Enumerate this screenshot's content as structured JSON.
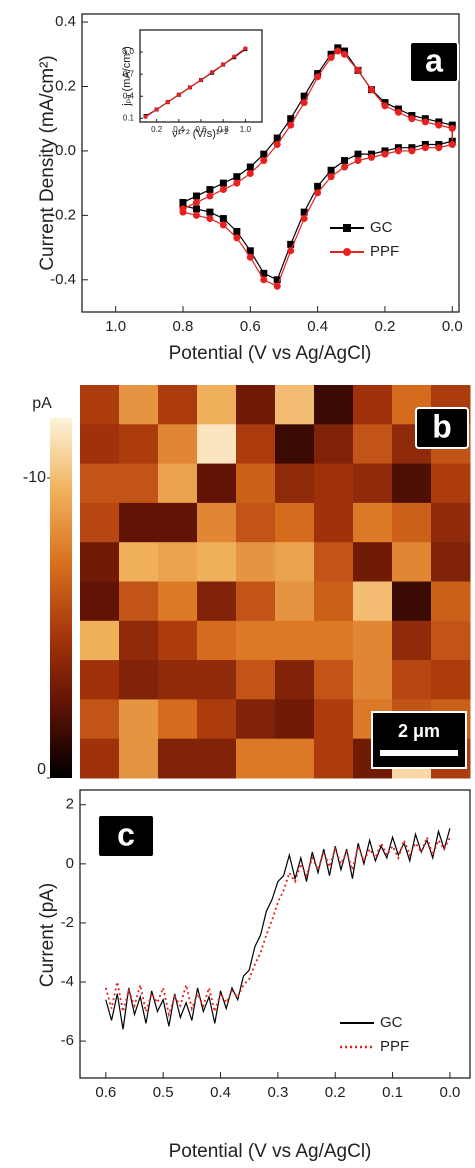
{
  "chart_data": [
    {
      "type": "line",
      "panel_label": "a",
      "xlabel": "Potential (V vs Ag/AgCl)",
      "ylabel": "Current Density (mA/cm²)",
      "xlim": [
        1.1,
        -0.02
      ],
      "xticks": [
        {
          "value": 1,
          "label": "1.0"
        },
        0.8,
        0.6,
        0.4,
        0.2,
        {
          "value": 0,
          "label": "0.0"
        }
      ],
      "ylim": [
        -0.5,
        0.425
      ],
      "yticks": [
        0.4,
        0.2,
        {
          "value": 0,
          "label": "0.0"
        },
        -0.2,
        -0.4
      ],
      "legend": "lower right",
      "series": [
        {
          "name": "GC",
          "color": "#000000",
          "marker": "square",
          "x": [
            0.8,
            0.76,
            0.72,
            0.68,
            0.64,
            0.6,
            0.56,
            0.52,
            0.48,
            0.44,
            0.4,
            0.36,
            0.34,
            0.32,
            0.28,
            0.24,
            0.2,
            0.16,
            0.12,
            0.08,
            0.04,
            0,
            0,
            0.04,
            0.08,
            0.12,
            0.16,
            0.2,
            0.24,
            0.28,
            0.32,
            0.36,
            0.4,
            0.44,
            0.48,
            0.52,
            0.56,
            0.6,
            0.64,
            0.68,
            0.72,
            0.76,
            0.8
          ],
          "values": [
            -0.16,
            -0.14,
            -0.12,
            -0.1,
            -0.08,
            -0.05,
            -0.01,
            0.04,
            0.1,
            0.17,
            0.24,
            0.3,
            0.32,
            0.31,
            0.25,
            0.19,
            0.15,
            0.13,
            0.11,
            0.1,
            0.09,
            0.08,
            0.03,
            0.02,
            0.02,
            0.01,
            0.01,
            0,
            -0.01,
            -0.01,
            -0.03,
            -0.06,
            -0.11,
            -0.19,
            -0.29,
            -0.4,
            -0.38,
            -0.31,
            -0.25,
            -0.21,
            -0.19,
            -0.18,
            -0.17
          ]
        },
        {
          "name": "PPF",
          "color": "#e8201f",
          "marker": "circle",
          "x": [
            0.8,
            0.76,
            0.72,
            0.68,
            0.64,
            0.6,
            0.56,
            0.52,
            0.48,
            0.44,
            0.4,
            0.36,
            0.34,
            0.32,
            0.28,
            0.24,
            0.2,
            0.16,
            0.12,
            0.08,
            0.04,
            0,
            0,
            0.04,
            0.08,
            0.12,
            0.16,
            0.2,
            0.24,
            0.28,
            0.32,
            0.36,
            0.4,
            0.44,
            0.48,
            0.52,
            0.56,
            0.6,
            0.64,
            0.68,
            0.72,
            0.76,
            0.8
          ],
          "values": [
            -0.18,
            -0.16,
            -0.14,
            -0.12,
            -0.1,
            -0.07,
            -0.03,
            0.02,
            0.08,
            0.15,
            0.23,
            0.29,
            0.31,
            0.3,
            0.25,
            0.19,
            0.14,
            0.12,
            0.1,
            0.09,
            0.08,
            0.07,
            0.02,
            0.01,
            0.01,
            0,
            0,
            -0.01,
            -0.02,
            -0.03,
            -0.05,
            -0.08,
            -0.13,
            -0.21,
            -0.31,
            -0.42,
            -0.4,
            -0.33,
            -0.27,
            -0.23,
            -0.21,
            -0.2,
            -0.19
          ]
        }
      ],
      "inset": {
        "type": "line",
        "xlabel": "ν¹ᐟ² (V/s)¹ᐟ²",
        "ylabel": "jₚₐ (mA/cm²)",
        "xlim": [
          0.05,
          1.15
        ],
        "xticks": [
          0.2,
          0.4,
          0.6,
          0.8,
          {
            "value": 1,
            "label": "1.0"
          }
        ],
        "ylim": [
          0.05,
          1.3
        ],
        "yticks": [
          0.1,
          0.4,
          0.7,
          {
            "value": 1,
            "label": "1.0"
          }
        ],
        "series": [
          {
            "name": "GC",
            "color": "#000000",
            "marker": "square",
            "x": [
              0.1,
              0.2,
              0.3,
              0.4,
              0.5,
              0.6,
              0.7,
              0.8,
              0.9,
              1
            ],
            "values": [
              0.13,
              0.22,
              0.32,
              0.42,
              0.52,
              0.62,
              0.72,
              0.83,
              0.93,
              1.04
            ]
          },
          {
            "name": "PPF",
            "color": "#e8201f",
            "marker": "circle",
            "x": [
              0.1,
              0.2,
              0.3,
              0.4,
              0.5,
              0.6,
              0.7,
              0.8,
              0.9,
              1
            ],
            "values": [
              0.12,
              0.22,
              0.32,
              0.42,
              0.52,
              0.62,
              0.73,
              0.83,
              0.94,
              1.05
            ]
          }
        ]
      }
    },
    {
      "type": "heatmap",
      "panel_label": "b",
      "colorbar_label": "pA",
      "zlim": [
        0,
        -12
      ],
      "zticks": [
        -10,
        0
      ],
      "colormap": [
        "#000000",
        "#5e1205",
        "#a8360c",
        "#d9711f",
        "#f0b25e",
        "#fdf3da"
      ],
      "scalebar_label": "2 μm",
      "z": [
        [
          -5,
          -8.5,
          -5,
          -9.5,
          -3,
          -10,
          -1.5,
          -4.5,
          -7,
          -5
        ],
        [
          -4.5,
          -5,
          -8,
          -11.5,
          -5,
          -1.5,
          -3.5,
          -6,
          -4,
          -6
        ],
        [
          -6,
          -6,
          -9,
          -2.5,
          -6.5,
          -4,
          -4.5,
          -4,
          -2,
          -5
        ],
        [
          -5.5,
          -2.5,
          -2.5,
          -8,
          -6,
          -7,
          -4.5,
          -7.5,
          -6.5,
          -4
        ],
        [
          -3,
          -9.5,
          -9,
          -9.5,
          -8.5,
          -9,
          -6,
          -3,
          -8,
          -3.5
        ],
        [
          -2.5,
          -6,
          -7.5,
          -3.5,
          -6,
          -8.5,
          -6.5,
          -10,
          -1.5,
          -6.5
        ],
        [
          -9.5,
          -4,
          -5,
          -7,
          -7.5,
          -7.5,
          -7.5,
          -8,
          -4,
          -6
        ],
        [
          -4.5,
          -3.5,
          -4,
          -4,
          -6,
          -3.5,
          -6,
          -8,
          -5.5,
          -5
        ],
        [
          -6,
          -8.5,
          -7,
          -5,
          -3.5,
          -3,
          -5,
          -7.5,
          -6,
          -6.5
        ],
        [
          -4.5,
          -8.5,
          -3.5,
          -3.5,
          -7.5,
          -7.5,
          -5,
          -3,
          -11,
          -5
        ]
      ]
    },
    {
      "type": "line",
      "panel_label": "c",
      "xlabel": "Potential (V vs Ag/AgCl)",
      "ylabel": "Current (pA)",
      "xlim": [
        0.645,
        -0.035
      ],
      "xticks": [
        0.6,
        0.5,
        0.4,
        0.3,
        0.2,
        0.1,
        {
          "value": 0,
          "label": "0.0"
        }
      ],
      "ylim": [
        -7.25,
        2.5
      ],
      "yticks": [
        2,
        0,
        -2,
        -4,
        -6
      ],
      "legend": "lower right",
      "x": [
        0.6,
        0.59,
        0.58,
        0.57,
        0.56,
        0.55,
        0.54,
        0.53,
        0.52,
        0.51,
        0.5,
        0.49,
        0.48,
        0.47,
        0.46,
        0.45,
        0.44,
        0.43,
        0.42,
        0.41,
        0.4,
        0.39,
        0.38,
        0.37,
        0.36,
        0.35,
        0.34,
        0.33,
        0.32,
        0.31,
        0.3,
        0.29,
        0.28,
        0.27,
        0.26,
        0.25,
        0.24,
        0.23,
        0.22,
        0.21,
        0.2,
        0.19,
        0.18,
        0.17,
        0.16,
        0.15,
        0.14,
        0.13,
        0.12,
        0.11,
        0.1,
        0.09,
        0.08,
        0.07,
        0.06,
        0.05,
        0.04,
        0.03,
        0.02,
        0.01,
        0
      ],
      "series": [
        {
          "name": "GC",
          "color": "#000000",
          "values": [
            -4.6,
            -5.3,
            -4.4,
            -5.6,
            -4.2,
            -5.1,
            -4.5,
            -5.4,
            -4.3,
            -5,
            -4.6,
            -5.5,
            -4.4,
            -5.2,
            -4.7,
            -5.3,
            -4.2,
            -5,
            -4.5,
            -5.4,
            -4.3,
            -4.9,
            -4.2,
            -4.6,
            -3.8,
            -3.6,
            -2.8,
            -2.4,
            -1.6,
            -1.2,
            -0.6,
            -0.4,
            0.3,
            -0.5,
            0.2,
            -0.6,
            0.4,
            -0.3,
            0.5,
            -0.4,
            0.6,
            -0.2,
            0.5,
            -0.5,
            0.7,
            0,
            0.8,
            0.1,
            0.6,
            0.2,
            0.9,
            0.3,
            0.7,
            0.1,
            1,
            0.4,
            0.8,
            0.2,
            1.1,
            0.5,
            1.2
          ]
        },
        {
          "name": "PPF",
          "color": "#e8201f",
          "dash": "2,3",
          "values": [
            -4.2,
            -4.9,
            -4,
            -5,
            -4.3,
            -4.8,
            -4.1,
            -5,
            -4.4,
            -4.7,
            -4.2,
            -5.1,
            -4.5,
            -4.8,
            -4.1,
            -4.9,
            -4.4,
            -4.8,
            -4.2,
            -5,
            -4.4,
            -4.7,
            -4.3,
            -4.5,
            -4.1,
            -3.9,
            -3.4,
            -3,
            -2.4,
            -1.9,
            -1.3,
            -0.9,
            -0.3,
            -0.6,
            0,
            -0.4,
            0.2,
            -0.2,
            0.4,
            -0.1,
            0.5,
            0,
            0.4,
            -0.2,
            0.6,
            0.1,
            0.5,
            0.2,
            0.7,
            0.3,
            0.6,
            0.2,
            0.8,
            0.3,
            0.7,
            0.4,
            0.9,
            0.3,
            0.8,
            0.5,
            0.9
          ]
        }
      ]
    }
  ]
}
